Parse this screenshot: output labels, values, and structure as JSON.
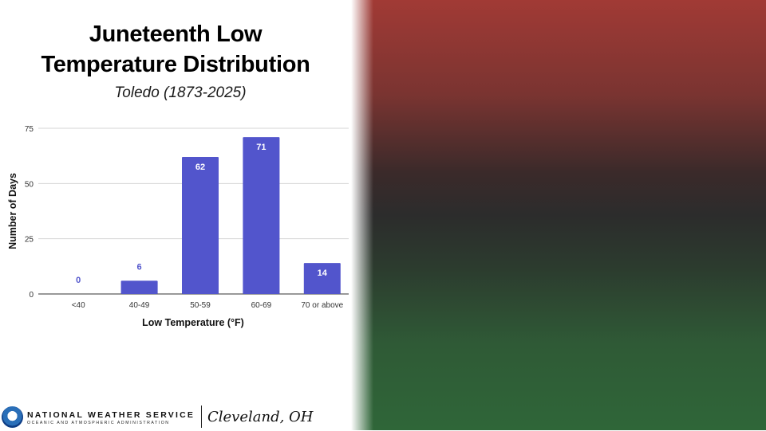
{
  "title_line1": "Juneteenth Low",
  "title_line2": "Temperature Distribution",
  "subtitle": "Toledo (1873-2025)",
  "chart_data": {
    "type": "bar",
    "categories": [
      "<40",
      "40-49",
      "50-59",
      "60-69",
      "70 or above"
    ],
    "values": [
      0,
      6,
      62,
      71,
      14
    ],
    "xlabel": "Low Temperature (°F)",
    "ylabel": "Number of Days",
    "ylim": [
      0,
      75
    ],
    "yticks": [
      0,
      25,
      50,
      75
    ],
    "grid": true,
    "bar_color": "#5255cc",
    "label_color_inside": "#ffffff",
    "label_color_outside": "#5255cc"
  },
  "footer": {
    "org_name": "NATIONAL WEATHER SERVICE",
    "org_sub": "OCEANIC AND ATMOSPHERIC ADMINISTRATION",
    "office": "Cleveland, OH"
  },
  "flag_colors": [
    "#a13a35",
    "#2c2c2c",
    "#2f6638"
  ]
}
